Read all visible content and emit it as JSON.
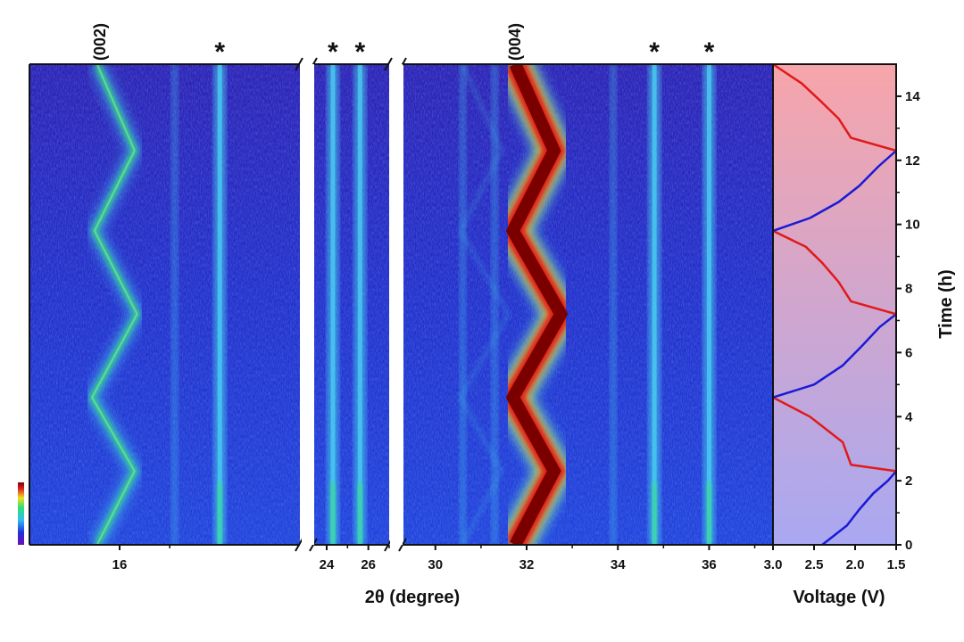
{
  "colors": {
    "background_blue": "#1f3fd8",
    "background_deep": "#2a1fb8",
    "signal_cyan": "#4ad0f0",
    "signal_green": "#31e07a",
    "signal_yellow": "#f2e020",
    "signal_red": "#e21818",
    "signal_darkred": "#7a0000",
    "voltage_line_charge": "#e01a1a",
    "voltage_line_discharge": "#1a1ad6",
    "voltage_panel_top": "#f6a7ad",
    "voltage_panel_bottom": "#aaaaf0"
  },
  "annotations": {
    "peak_002": "(002)",
    "peak_004": "(004)",
    "star": "*"
  },
  "chart_data": [
    {
      "type": "heatmap",
      "panel": "2θ map",
      "xlabel": "2θ (degree)",
      "ylabel": "",
      "segments": [
        {
          "xlim": [
            14.2,
            19.6
          ],
          "xticks": [
            16
          ]
        },
        {
          "xlim": [
            23.4,
            27.0
          ],
          "xticks": [
            24,
            26
          ]
        },
        {
          "xlim": [
            29.3,
            37.4
          ],
          "xticks": [
            30,
            32,
            34,
            36
          ]
        }
      ],
      "ylim": [
        0,
        15
      ],
      "peaks": [
        {
          "name": "(002)",
          "time_h": [
            0,
            2.3,
            4.6,
            7.2,
            9.8,
            12.3,
            15
          ],
          "two_theta": [
            15.55,
            16.3,
            15.45,
            16.35,
            15.5,
            16.3,
            15.55
          ]
        },
        {
          "name": "(004)",
          "time_h": [
            0,
            2.3,
            4.6,
            7.2,
            9.8,
            12.3,
            15
          ],
          "two_theta": [
            31.75,
            32.6,
            31.7,
            32.75,
            31.7,
            32.6,
            31.75
          ]
        }
      ],
      "static_reflections_marked_star": [
        18.0,
        24.3,
        25.6,
        34.8,
        36.0
      ],
      "colorbar_levels": 8
    },
    {
      "type": "line",
      "panel": "voltage profile",
      "xlabel": "Voltage (V)",
      "ylabel": "Time (h)",
      "xlim": [
        3.0,
        1.5
      ],
      "xticks": [
        "3.0",
        "2.5",
        "2.0",
        "1.5"
      ],
      "ylim": [
        0,
        15
      ],
      "yticks": [
        "0",
        "2",
        "4",
        "6",
        "8",
        "10",
        "12",
        "14"
      ],
      "series": [
        {
          "role": "discharge_1",
          "time_h": [
            0,
            0.6,
            1.1,
            1.6,
            2.0,
            2.3
          ],
          "voltage": [
            2.4,
            2.1,
            1.95,
            1.78,
            1.6,
            1.5
          ]
        },
        {
          "role": "charge_1",
          "time_h": [
            2.3,
            2.5,
            3.2,
            3.6,
            4.0,
            4.6
          ],
          "voltage": [
            1.5,
            2.05,
            2.15,
            2.35,
            2.55,
            3.0
          ]
        },
        {
          "role": "discharge_2",
          "time_h": [
            4.6,
            5.0,
            5.6,
            6.2,
            6.8,
            7.2
          ],
          "voltage": [
            3.0,
            2.5,
            2.15,
            1.92,
            1.7,
            1.5
          ]
        },
        {
          "role": "charge_2",
          "time_h": [
            7.2,
            7.6,
            8.2,
            8.8,
            9.3,
            9.8
          ],
          "voltage": [
            1.5,
            2.05,
            2.2,
            2.4,
            2.6,
            3.0
          ]
        },
        {
          "role": "discharge_3",
          "time_h": [
            9.8,
            10.2,
            10.7,
            11.2,
            11.8,
            12.3
          ],
          "voltage": [
            3.0,
            2.55,
            2.2,
            1.95,
            1.72,
            1.5
          ]
        },
        {
          "role": "charge_3",
          "time_h": [
            12.3,
            12.7,
            13.3,
            13.8,
            14.4,
            15.0
          ],
          "voltage": [
            1.5,
            2.05,
            2.2,
            2.4,
            2.65,
            3.0
          ]
        }
      ]
    }
  ]
}
